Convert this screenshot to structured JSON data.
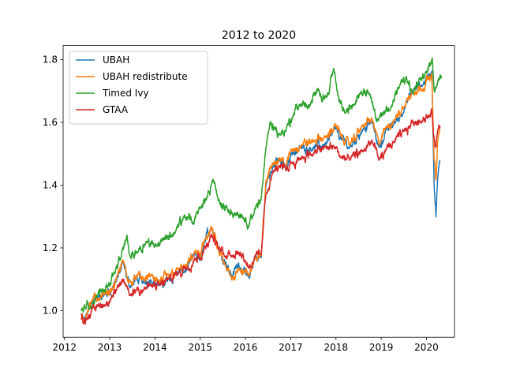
{
  "chart_data": {
    "type": "line",
    "title": "2012 to 2020",
    "xlabel": "",
    "ylabel": "",
    "xlim": [
      2011.97,
      2020.62
    ],
    "ylim": [
      0.915,
      1.845
    ],
    "xticks": [
      2012,
      2013,
      2014,
      2015,
      2016,
      2017,
      2018,
      2019,
      2020
    ],
    "xtick_labels": [
      "2012",
      "2013",
      "2014",
      "2015",
      "2016",
      "2017",
      "2018",
      "2019",
      "2020"
    ],
    "yticks": [
      1.0,
      1.2,
      1.4,
      1.6,
      1.8
    ],
    "ytick_labels": [
      "1.0",
      "1.2",
      "1.4",
      "1.6",
      "1.8"
    ],
    "grid": false,
    "legend_position": "top-left",
    "series": [
      {
        "name": "UBAH",
        "color": "#1f77b4",
        "points": [
          [
            2012.37,
            0.99
          ],
          [
            2012.42,
            0.96
          ],
          [
            2012.5,
            0.99
          ],
          [
            2012.6,
            1.03
          ],
          [
            2012.75,
            1.04
          ],
          [
            2012.9,
            1.05
          ],
          [
            2013.05,
            1.07
          ],
          [
            2013.15,
            1.1
          ],
          [
            2013.3,
            1.15
          ],
          [
            2013.38,
            1.1
          ],
          [
            2013.45,
            1.08
          ],
          [
            2013.6,
            1.1
          ],
          [
            2013.75,
            1.09
          ],
          [
            2013.9,
            1.1
          ],
          [
            2014.1,
            1.08
          ],
          [
            2014.3,
            1.1
          ],
          [
            2014.5,
            1.12
          ],
          [
            2014.7,
            1.13
          ],
          [
            2014.9,
            1.18
          ],
          [
            2015.0,
            1.16
          ],
          [
            2015.1,
            1.22
          ],
          [
            2015.25,
            1.27
          ],
          [
            2015.4,
            1.2
          ],
          [
            2015.55,
            1.16
          ],
          [
            2015.7,
            1.11
          ],
          [
            2015.85,
            1.15
          ],
          [
            2016.0,
            1.12
          ],
          [
            2016.08,
            1.1
          ],
          [
            2016.2,
            1.17
          ],
          [
            2016.35,
            1.17
          ],
          [
            2016.45,
            1.4
          ],
          [
            2016.6,
            1.46
          ],
          [
            2016.75,
            1.48
          ],
          [
            2016.9,
            1.45
          ],
          [
            2017.0,
            1.5
          ],
          [
            2017.25,
            1.52
          ],
          [
            2017.5,
            1.52
          ],
          [
            2017.75,
            1.53
          ],
          [
            2018.0,
            1.58
          ],
          [
            2018.1,
            1.55
          ],
          [
            2018.3,
            1.52
          ],
          [
            2018.6,
            1.58
          ],
          [
            2018.8,
            1.6
          ],
          [
            2018.95,
            1.52
          ],
          [
            2019.1,
            1.57
          ],
          [
            2019.3,
            1.6
          ],
          [
            2019.5,
            1.64
          ],
          [
            2019.7,
            1.7
          ],
          [
            2019.9,
            1.72
          ],
          [
            2020.05,
            1.75
          ],
          [
            2020.12,
            1.76
          ],
          [
            2020.17,
            1.4
          ],
          [
            2020.21,
            1.3
          ],
          [
            2020.25,
            1.42
          ],
          [
            2020.3,
            1.48
          ]
        ]
      },
      {
        "name": "UBAH redistribute",
        "color": "#ff7f0e",
        "points": [
          [
            2012.37,
            0.99
          ],
          [
            2012.42,
            0.97
          ],
          [
            2012.5,
            1.0
          ],
          [
            2012.6,
            1.03
          ],
          [
            2012.75,
            1.04
          ],
          [
            2012.9,
            1.05
          ],
          [
            2013.05,
            1.07
          ],
          [
            2013.15,
            1.1
          ],
          [
            2013.3,
            1.16
          ],
          [
            2013.38,
            1.11
          ],
          [
            2013.45,
            1.09
          ],
          [
            2013.6,
            1.11
          ],
          [
            2013.75,
            1.1
          ],
          [
            2013.9,
            1.11
          ],
          [
            2014.1,
            1.09
          ],
          [
            2014.3,
            1.11
          ],
          [
            2014.5,
            1.13
          ],
          [
            2014.7,
            1.14
          ],
          [
            2014.9,
            1.19
          ],
          [
            2015.0,
            1.17
          ],
          [
            2015.1,
            1.23
          ],
          [
            2015.25,
            1.26
          ],
          [
            2015.4,
            1.19
          ],
          [
            2015.55,
            1.14
          ],
          [
            2015.7,
            1.1
          ],
          [
            2015.85,
            1.14
          ],
          [
            2016.0,
            1.12
          ],
          [
            2016.08,
            1.11
          ],
          [
            2016.2,
            1.17
          ],
          [
            2016.35,
            1.17
          ],
          [
            2016.45,
            1.41
          ],
          [
            2016.6,
            1.47
          ],
          [
            2016.75,
            1.49
          ],
          [
            2016.9,
            1.46
          ],
          [
            2017.0,
            1.51
          ],
          [
            2017.25,
            1.53
          ],
          [
            2017.5,
            1.54
          ],
          [
            2017.75,
            1.55
          ],
          [
            2018.0,
            1.59
          ],
          [
            2018.1,
            1.56
          ],
          [
            2018.3,
            1.53
          ],
          [
            2018.6,
            1.59
          ],
          [
            2018.8,
            1.61
          ],
          [
            2018.95,
            1.53
          ],
          [
            2019.1,
            1.58
          ],
          [
            2019.3,
            1.61
          ],
          [
            2019.5,
            1.65
          ],
          [
            2019.7,
            1.7
          ],
          [
            2019.9,
            1.71
          ],
          [
            2020.05,
            1.74
          ],
          [
            2020.12,
            1.75
          ],
          [
            2020.17,
            1.48
          ],
          [
            2020.21,
            1.42
          ],
          [
            2020.25,
            1.54
          ],
          [
            2020.3,
            1.58
          ]
        ]
      },
      {
        "name": "Timed Ivy",
        "color": "#2ca02c",
        "points": [
          [
            2012.37,
            1.0
          ],
          [
            2012.45,
            1.01
          ],
          [
            2012.55,
            1.01
          ],
          [
            2012.7,
            1.04
          ],
          [
            2012.85,
            1.07
          ],
          [
            2012.95,
            1.08
          ],
          [
            2013.1,
            1.12
          ],
          [
            2013.25,
            1.17
          ],
          [
            2013.38,
            1.24
          ],
          [
            2013.45,
            1.17
          ],
          [
            2013.6,
            1.19
          ],
          [
            2013.8,
            1.22
          ],
          [
            2014.0,
            1.21
          ],
          [
            2014.2,
            1.23
          ],
          [
            2014.45,
            1.25
          ],
          [
            2014.65,
            1.3
          ],
          [
            2014.85,
            1.28
          ],
          [
            2015.0,
            1.33
          ],
          [
            2015.15,
            1.36
          ],
          [
            2015.28,
            1.42
          ],
          [
            2015.4,
            1.35
          ],
          [
            2015.6,
            1.32
          ],
          [
            2015.8,
            1.31
          ],
          [
            2015.95,
            1.29
          ],
          [
            2016.05,
            1.26
          ],
          [
            2016.2,
            1.32
          ],
          [
            2016.35,
            1.36
          ],
          [
            2016.45,
            1.52
          ],
          [
            2016.55,
            1.6
          ],
          [
            2016.65,
            1.58
          ],
          [
            2016.75,
            1.56
          ],
          [
            2016.9,
            1.58
          ],
          [
            2017.05,
            1.62
          ],
          [
            2017.2,
            1.66
          ],
          [
            2017.4,
            1.65
          ],
          [
            2017.6,
            1.7
          ],
          [
            2017.8,
            1.68
          ],
          [
            2017.95,
            1.77
          ],
          [
            2018.05,
            1.68
          ],
          [
            2018.2,
            1.63
          ],
          [
            2018.4,
            1.66
          ],
          [
            2018.55,
            1.7
          ],
          [
            2018.75,
            1.7
          ],
          [
            2018.9,
            1.6
          ],
          [
            2019.05,
            1.63
          ],
          [
            2019.2,
            1.65
          ],
          [
            2019.4,
            1.71
          ],
          [
            2019.55,
            1.74
          ],
          [
            2019.7,
            1.69
          ],
          [
            2019.85,
            1.73
          ],
          [
            2020.0,
            1.76
          ],
          [
            2020.08,
            1.78
          ],
          [
            2020.13,
            1.8
          ],
          [
            2020.18,
            1.7
          ],
          [
            2020.22,
            1.72
          ],
          [
            2020.28,
            1.74
          ],
          [
            2020.33,
            1.74
          ]
        ]
      },
      {
        "name": "GTAA",
        "color": "#d62728",
        "points": [
          [
            2012.37,
            0.98
          ],
          [
            2012.42,
            0.97
          ],
          [
            2012.5,
            0.98
          ],
          [
            2012.6,
            1.0
          ],
          [
            2012.75,
            1.02
          ],
          [
            2012.9,
            1.02
          ],
          [
            2013.05,
            1.04
          ],
          [
            2013.15,
            1.06
          ],
          [
            2013.3,
            1.1
          ],
          [
            2013.38,
            1.07
          ],
          [
            2013.45,
            1.05
          ],
          [
            2013.6,
            1.07
          ],
          [
            2013.75,
            1.07
          ],
          [
            2013.9,
            1.08
          ],
          [
            2014.1,
            1.08
          ],
          [
            2014.3,
            1.1
          ],
          [
            2014.5,
            1.12
          ],
          [
            2014.7,
            1.14
          ],
          [
            2014.9,
            1.17
          ],
          [
            2015.0,
            1.17
          ],
          [
            2015.1,
            1.2
          ],
          [
            2015.25,
            1.24
          ],
          [
            2015.4,
            1.2
          ],
          [
            2015.55,
            1.18
          ],
          [
            2015.7,
            1.18
          ],
          [
            2015.85,
            1.19
          ],
          [
            2016.0,
            1.16
          ],
          [
            2016.08,
            1.14
          ],
          [
            2016.2,
            1.17
          ],
          [
            2016.35,
            1.18
          ],
          [
            2016.45,
            1.37
          ],
          [
            2016.6,
            1.44
          ],
          [
            2016.75,
            1.46
          ],
          [
            2016.9,
            1.45
          ],
          [
            2017.0,
            1.47
          ],
          [
            2017.25,
            1.49
          ],
          [
            2017.5,
            1.5
          ],
          [
            2017.75,
            1.52
          ],
          [
            2018.0,
            1.52
          ],
          [
            2018.1,
            1.49
          ],
          [
            2018.3,
            1.48
          ],
          [
            2018.6,
            1.51
          ],
          [
            2018.8,
            1.54
          ],
          [
            2018.95,
            1.48
          ],
          [
            2019.1,
            1.51
          ],
          [
            2019.3,
            1.54
          ],
          [
            2019.5,
            1.57
          ],
          [
            2019.7,
            1.6
          ],
          [
            2019.9,
            1.61
          ],
          [
            2020.05,
            1.62
          ],
          [
            2020.12,
            1.63
          ],
          [
            2020.17,
            1.55
          ],
          [
            2020.21,
            1.52
          ],
          [
            2020.25,
            1.57
          ],
          [
            2020.3,
            1.59
          ]
        ]
      }
    ]
  }
}
